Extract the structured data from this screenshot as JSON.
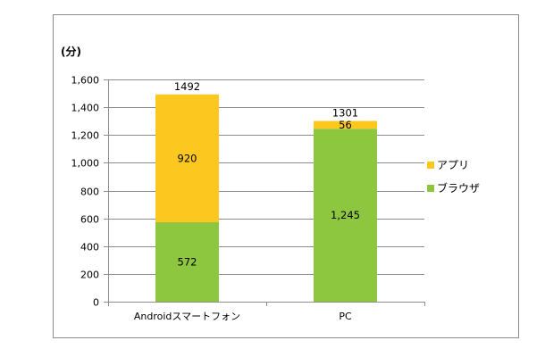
{
  "chart_data": {
    "type": "bar",
    "stacked": true,
    "unit_label": "(分)",
    "categories": [
      "Androidスマートフォン",
      "PC"
    ],
    "series": [
      {
        "name": "ブラウザ",
        "color": "#8dc63f",
        "values": [
          572,
          1245
        ],
        "labels": [
          "572",
          "1,245"
        ]
      },
      {
        "name": "アプリ",
        "color": "#fcc820",
        "values": [
          920,
          56
        ],
        "labels": [
          "920",
          "56"
        ]
      }
    ],
    "totals": [
      1492,
      1301
    ],
    "total_labels": [
      "1492",
      "1301"
    ],
    "y_ticks": [
      0,
      200,
      400,
      600,
      800,
      1000,
      1200,
      1400,
      1600
    ],
    "y_tick_labels": [
      "0",
      "200",
      "400",
      "600",
      "800",
      "1,000",
      "1,200",
      "1,400",
      "1,600"
    ],
    "ylim": [
      0,
      1600
    ],
    "grid": true,
    "legend": {
      "position": "right",
      "items": [
        "アプリ",
        "ブラウザ"
      ]
    }
  }
}
